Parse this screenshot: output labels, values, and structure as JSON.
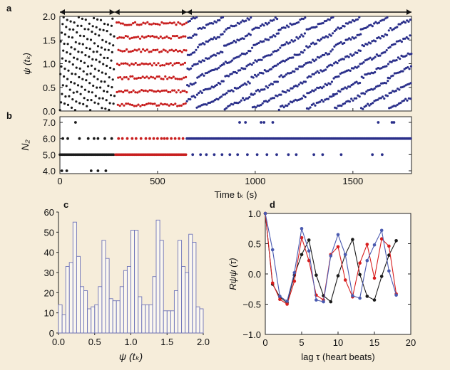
{
  "chart_data": [
    {
      "panel_letter": "a",
      "type": "scatter",
      "ylabel": "ψ (tₖ)",
      "xlim": [
        0,
        1800
      ],
      "ylim": [
        0,
        2.0
      ],
      "y_ticks": [
        "0.0",
        "0.5",
        "1.0",
        "1.5",
        "2.0"
      ],
      "segment_boundaries_s": [
        0,
        280,
        650,
        1800
      ],
      "series": [
        {
          "color": "#1a1a1a",
          "x_range": [
            0,
            280
          ],
          "point_count": 170,
          "pattern": "short sawtooth ramps spanning 0-2"
        },
        {
          "color": "#c81e1e",
          "x_range": [
            290,
            650
          ],
          "point_count": 240,
          "pattern": "sawtooth ramps, tighter bands"
        },
        {
          "color": "#2a2f8a",
          "x_range": [
            650,
            1800
          ],
          "point_count": 820,
          "pattern": "six slowly rising bands near 0.15, 0.45, 0.8, 1.1, 1.45, 1.8"
        }
      ]
    },
    {
      "panel_letter": "b",
      "type": "scatter",
      "ylabel": "N₂",
      "xlabel": "Time tₖ (s)",
      "xlim": [
        0,
        1800
      ],
      "ylim": [
        4,
        7
      ],
      "x_ticks": [
        "0",
        "500",
        "1000",
        "1500"
      ],
      "y_ticks": [
        "4.0",
        "5.0",
        "6.0",
        "7.0"
      ],
      "series": [
        {
          "color": "#1a1a1a",
          "points": [
            [
              10,
              4
            ],
            [
              35,
              4
            ],
            [
              160,
              4
            ],
            [
              195,
              4
            ],
            [
              235,
              4
            ],
            [
              15,
              6
            ],
            [
              40,
              6
            ],
            [
              100,
              6
            ],
            [
              145,
              6
            ],
            [
              175,
              6
            ],
            [
              195,
              6
            ],
            [
              230,
              6
            ],
            [
              265,
              6
            ],
            [
              80,
              7
            ]
          ],
          "runs": [
            {
              "y": 5,
              "x": [
                0,
                280
              ]
            }
          ]
        },
        {
          "color": "#c81e1e",
          "points": [
            [
              300,
              6
            ],
            [
              320,
              6
            ],
            [
              345,
              6
            ],
            [
              370,
              6
            ],
            [
              390,
              6
            ],
            [
              415,
              6
            ],
            [
              440,
              6
            ],
            [
              460,
              6
            ],
            [
              480,
              6
            ],
            [
              500,
              6
            ],
            [
              520,
              6
            ],
            [
              535,
              6
            ],
            [
              550,
              6
            ],
            [
              570,
              6
            ],
            [
              590,
              6
            ],
            [
              610,
              6
            ],
            [
              630,
              6
            ]
          ],
          "runs": [
            {
              "y": 5,
              "x": [
                285,
                650
              ]
            }
          ]
        },
        {
          "color": "#2a2f8a",
          "points": [
            [
              680,
              5
            ],
            [
              720,
              5
            ],
            [
              750,
              5
            ],
            [
              790,
              5
            ],
            [
              830,
              5
            ],
            [
              870,
              5
            ],
            [
              910,
              5
            ],
            [
              960,
              5
            ],
            [
              1010,
              5
            ],
            [
              1060,
              5
            ],
            [
              1110,
              5
            ],
            [
              1170,
              5
            ],
            [
              1210,
              5
            ],
            [
              1300,
              5
            ],
            [
              1345,
              5
            ],
            [
              1440,
              5
            ],
            [
              1600,
              5
            ],
            [
              1650,
              5
            ],
            [
              920,
              7
            ],
            [
              950,
              7
            ],
            [
              1030,
              7
            ],
            [
              1045,
              7
            ],
            [
              1090,
              7
            ],
            [
              1630,
              7
            ],
            [
              1700,
              7
            ],
            [
              1710,
              7
            ]
          ],
          "runs": [
            {
              "y": 6,
              "x": [
                650,
                1800
              ]
            }
          ]
        }
      ]
    },
    {
      "panel_letter": "c",
      "type": "bar",
      "xlabel": "ψ (tₖ)",
      "xlim": [
        0,
        2.0
      ],
      "ylim": [
        0,
        60
      ],
      "x_ticks": [
        "0.0",
        "0.5",
        "1.0",
        "1.5",
        "2.0"
      ],
      "y_ticks": [
        "0",
        "10",
        "20",
        "30",
        "40",
        "50",
        "60"
      ],
      "bin_width": 0.05,
      "values": [
        14,
        9,
        33,
        35,
        55,
        38,
        23,
        21,
        12,
        13,
        14,
        23,
        46,
        37,
        17,
        16,
        16,
        23,
        31,
        33,
        51,
        51,
        18,
        14,
        14,
        14,
        28,
        56,
        46,
        11,
        11,
        11,
        21,
        46,
        33,
        30,
        49,
        45,
        13,
        12
      ]
    },
    {
      "panel_letter": "d",
      "type": "line",
      "ylabel": "Rψψ (τ)",
      "xlabel": "lag τ (heart beats)",
      "xlim": [
        0,
        20
      ],
      "ylim": [
        -1.0,
        1.0
      ],
      "x_ticks": [
        "0",
        "5",
        "10",
        "15",
        "20"
      ],
      "y_ticks": [
        "−1.0",
        "−0.5",
        "0.0",
        "0.5",
        "1.0"
      ],
      "x": [
        0,
        1,
        2,
        3,
        4,
        5,
        6,
        7,
        8,
        9,
        10,
        11,
        12,
        13,
        14,
        15,
        16,
        17,
        18
      ],
      "series": [
        {
          "color": "#1a1a1a",
          "values": [
            1.0,
            -0.17,
            -0.38,
            -0.48,
            -0.02,
            0.32,
            0.56,
            -0.02,
            -0.36,
            -0.46,
            -0.03,
            0.32,
            0.57,
            -0.01,
            -0.37,
            -0.43,
            -0.04,
            0.31,
            0.55
          ]
        },
        {
          "color": "#d81e1e",
          "values": [
            1.0,
            -0.15,
            -0.42,
            -0.5,
            -0.12,
            0.6,
            0.22,
            -0.35,
            -0.43,
            0.32,
            0.45,
            -0.1,
            -0.38,
            0.18,
            0.49,
            -0.07,
            0.58,
            0.46,
            -0.33
          ]
        },
        {
          "color": "#4a5ab0",
          "values": [
            1.0,
            0.4,
            -0.37,
            -0.45,
            0.02,
            0.75,
            0.38,
            -0.43,
            -0.46,
            0.3,
            0.65,
            0.32,
            -0.36,
            -0.4,
            0.22,
            0.48,
            0.72,
            0.05,
            -0.35
          ]
        }
      ]
    }
  ]
}
